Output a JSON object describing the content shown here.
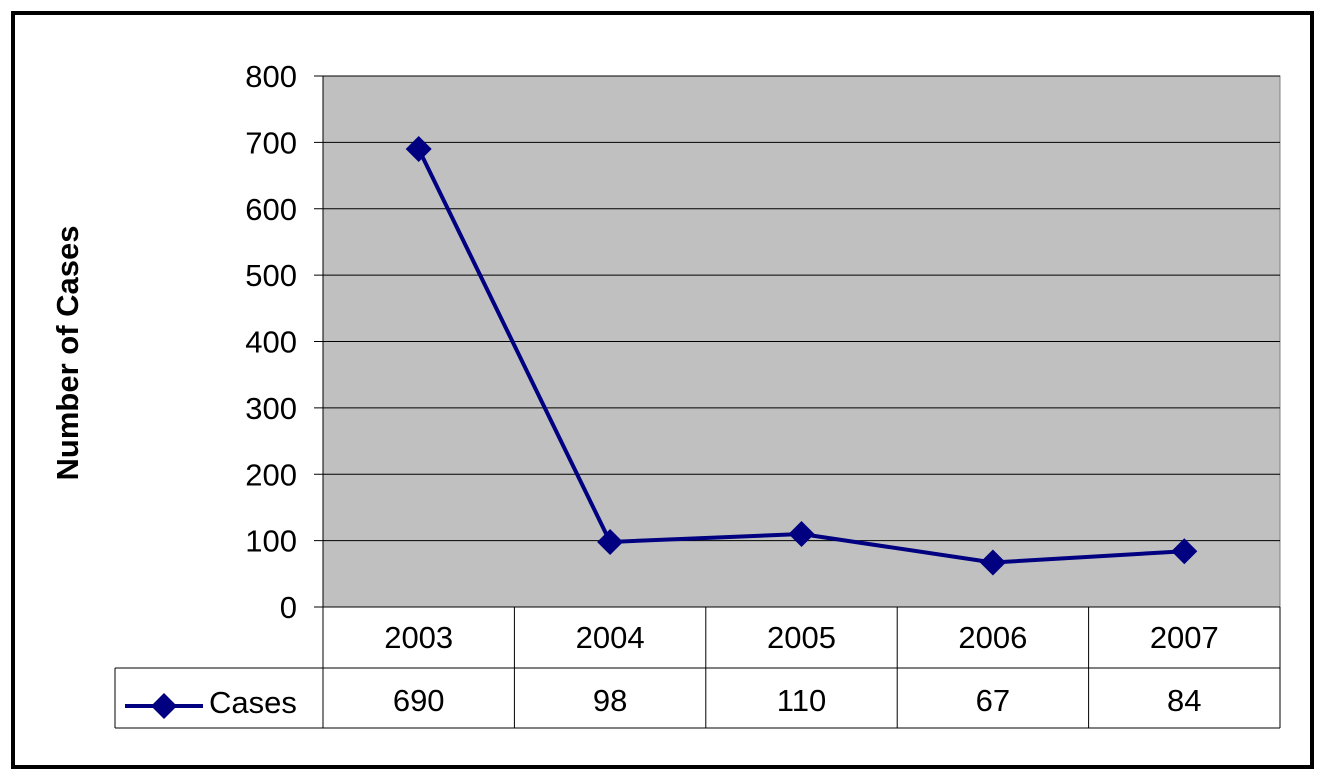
{
  "chart_data": {
    "type": "line",
    "ylabel": "Number of Cases",
    "categories": [
      "2003",
      "2004",
      "2005",
      "2006",
      "2007"
    ],
    "series": [
      {
        "name": "Cases",
        "values": [
          690,
          98,
          110,
          67,
          84
        ],
        "marker": "diamond"
      }
    ],
    "ylim": [
      0,
      800
    ],
    "yticks": [
      0,
      100,
      200,
      300,
      400,
      500,
      600,
      700,
      800
    ],
    "grid": true,
    "legend": "data-table-left",
    "data_table": true
  },
  "colors": {
    "series": "#000080",
    "plot_background": "#c0c0c0",
    "gridline": "#000000",
    "frame": "#000000"
  }
}
